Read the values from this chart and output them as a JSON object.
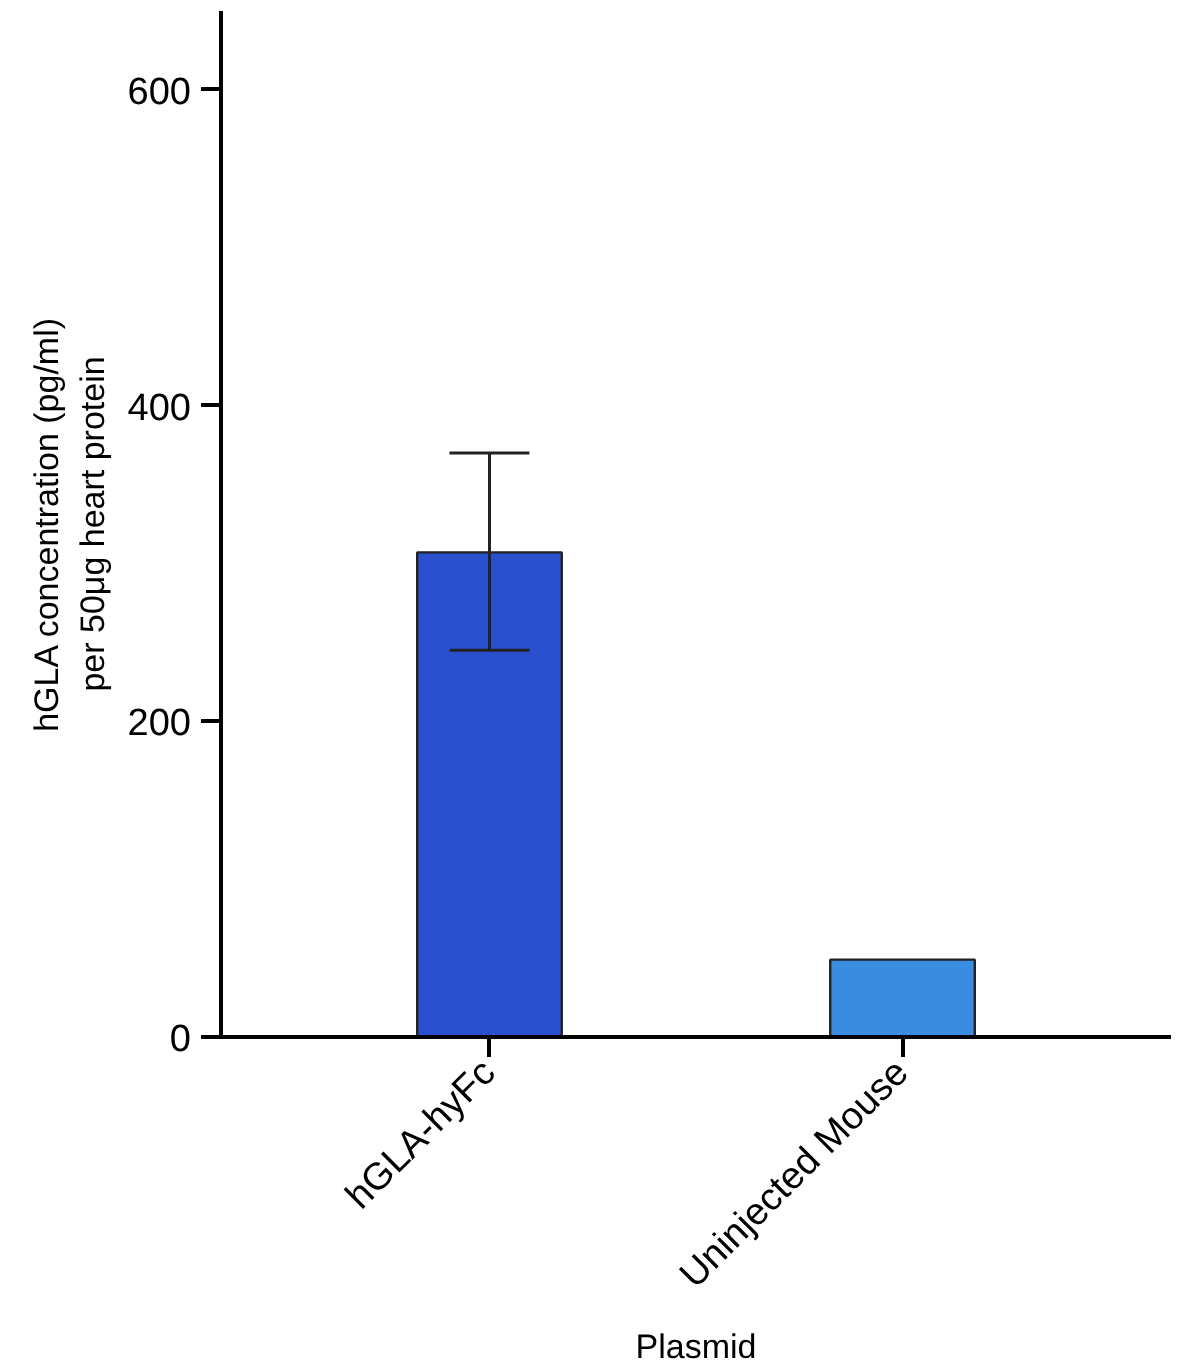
{
  "chart_data": {
    "type": "bar",
    "xlabel": "Plasmid",
    "ylabel": "hGLA concentration (pg/ml)\nper 50μg heart protein",
    "categories": [
      "hGLA-hyFc",
      "Uninjected Mouse"
    ],
    "values": [
      307,
      49
    ],
    "colors": [
      "#2a50d0",
      "#3a8ce0"
    ],
    "errors": [
      [
        245,
        370
      ],
      null
    ],
    "ylim": [
      0,
      650
    ],
    "yticks": [
      0,
      200,
      400,
      600
    ],
    "grid": false
  }
}
